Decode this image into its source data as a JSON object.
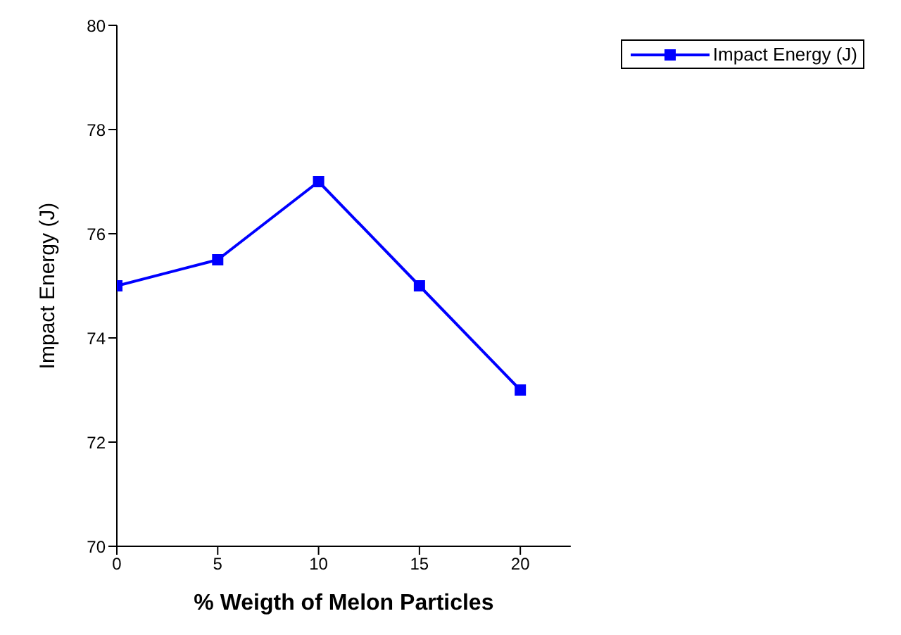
{
  "chart_data": {
    "type": "line",
    "xlabel": "% Weigth of Melon Particles",
    "ylabel": "Impact Energy (J)",
    "x": [
      0,
      5,
      10,
      15,
      20
    ],
    "series": [
      {
        "name": "Impact Energy (J)",
        "color": "#0000ff",
        "values": [
          75,
          75.5,
          77,
          75,
          73
        ]
      }
    ],
    "xlim": [
      0,
      22.5
    ],
    "xticks": [
      0,
      5,
      10,
      15,
      20
    ],
    "ylim": [
      70,
      80
    ],
    "yticks": [
      70,
      72,
      74,
      76,
      78,
      80
    ],
    "marker": "square",
    "line_style": "solid",
    "grid": false,
    "legend": "top right"
  }
}
